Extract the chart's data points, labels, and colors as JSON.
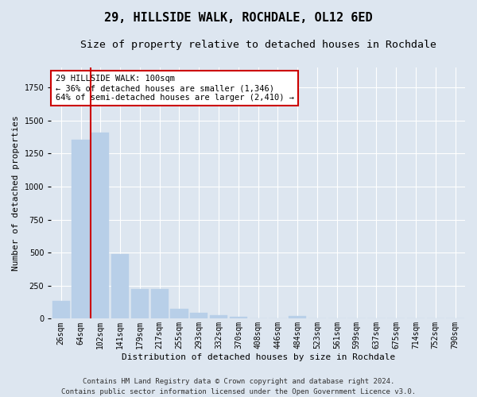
{
  "title": "29, HILLSIDE WALK, ROCHDALE, OL12 6ED",
  "subtitle": "Size of property relative to detached houses in Rochdale",
  "xlabel": "Distribution of detached houses by size in Rochdale",
  "ylabel": "Number of detached properties",
  "categories": [
    "26sqm",
    "64sqm",
    "102sqm",
    "141sqm",
    "179sqm",
    "217sqm",
    "255sqm",
    "293sqm",
    "332sqm",
    "370sqm",
    "408sqm",
    "446sqm",
    "484sqm",
    "523sqm",
    "561sqm",
    "599sqm",
    "637sqm",
    "675sqm",
    "714sqm",
    "752sqm",
    "790sqm"
  ],
  "values": [
    135,
    1355,
    1410,
    490,
    225,
    225,
    75,
    45,
    25,
    15,
    0,
    0,
    20,
    0,
    0,
    0,
    0,
    0,
    0,
    0,
    0
  ],
  "bar_color": "#b8cfe8",
  "bar_edgecolor": "#b8cfe8",
  "highlight_line_color": "#cc0000",
  "annotation_text": "29 HILLSIDE WALK: 100sqm\n← 36% of detached houses are smaller (1,346)\n64% of semi-detached houses are larger (2,410) →",
  "annotation_box_color": "#ffffff",
  "annotation_box_edgecolor": "#cc0000",
  "ylim": [
    0,
    1900
  ],
  "bg_color": "#dde6f0",
  "plot_bg_color": "#dde6f0",
  "grid_color": "#ffffff",
  "footer": "Contains HM Land Registry data © Crown copyright and database right 2024.\nContains public sector information licensed under the Open Government Licence v3.0.",
  "title_fontsize": 11,
  "subtitle_fontsize": 9.5,
  "axis_label_fontsize": 8,
  "tick_fontsize": 7,
  "annotation_fontsize": 7.5,
  "footer_fontsize": 6.5
}
